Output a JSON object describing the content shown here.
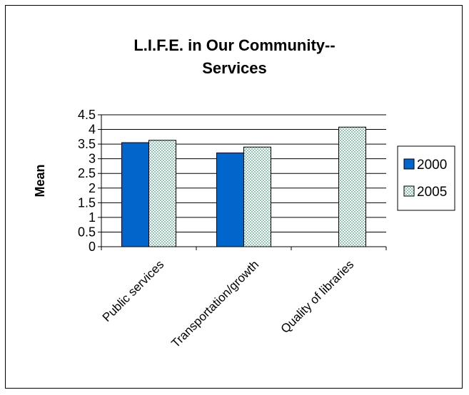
{
  "chart_data": {
    "type": "bar",
    "title_lines": [
      "L.I.F.E. in Our Community--",
      "Services"
    ],
    "xlabel": "",
    "ylabel": "Mean",
    "ylim": [
      0,
      4.5
    ],
    "yticks": [
      "0",
      "0.5",
      "1",
      "1.5",
      "2",
      "2.5",
      "3",
      "3.5",
      "4",
      "4.5"
    ],
    "categories": [
      "Public services",
      "Transportation/growth",
      "Quality of libraries"
    ],
    "series": [
      {
        "name": "2000",
        "values": [
          3.55,
          3.2,
          null
        ],
        "color": "#0066cc",
        "pattern": "solid"
      },
      {
        "name": "2005",
        "values": [
          3.63,
          3.4,
          4.08
        ],
        "color": "#cfe8e0",
        "pattern": "dotted"
      }
    ],
    "grid": true,
    "legend_position": "right"
  }
}
